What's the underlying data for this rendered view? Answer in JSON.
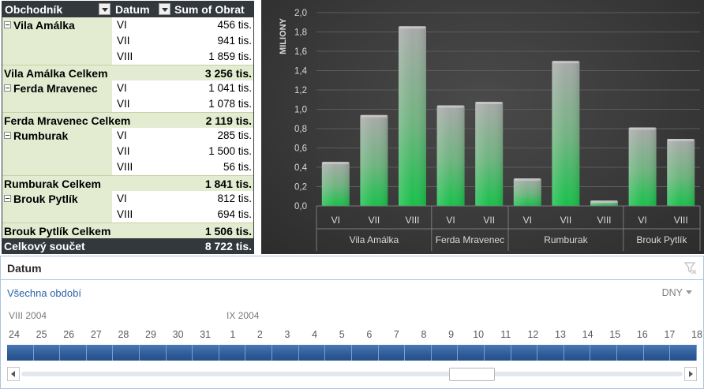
{
  "pivot": {
    "headers": {
      "merchant": "Obchodník",
      "date": "Datum",
      "sum": "Sum of Obrat"
    },
    "groups": [
      {
        "name": "Vila Amálka",
        "rows": [
          {
            "month": "VI",
            "value": "456 tis."
          },
          {
            "month": "VII",
            "value": "941 tis."
          },
          {
            "month": "VIII",
            "value": "1 859 tis."
          }
        ],
        "total_label": "Vila Amálka Celkem",
        "total_value": "3 256 tis."
      },
      {
        "name": "Ferda Mravenec",
        "rows": [
          {
            "month": "VI",
            "value": "1 041 tis."
          },
          {
            "month": "VII",
            "value": "1 078 tis."
          }
        ],
        "total_label": "Ferda Mravenec Celkem",
        "total_value": "2 119 tis."
      },
      {
        "name": "Rumburak",
        "rows": [
          {
            "month": "VI",
            "value": "285 tis."
          },
          {
            "month": "VII",
            "value": "1 500 tis."
          },
          {
            "month": "VIII",
            "value": "56 tis."
          }
        ],
        "total_label": "Rumburak Celkem",
        "total_value": "1 841 tis."
      },
      {
        "name": "Brouk Pytlík",
        "rows": [
          {
            "month": "VI",
            "value": "812 tis."
          },
          {
            "month": "VIII",
            "value": "694 tis."
          }
        ],
        "total_label": "Brouk Pytlík Celkem",
        "total_value": "1 506 tis."
      }
    ],
    "grand_total_label": "Celkový součet",
    "grand_total_value": "8 722 tis."
  },
  "chart_data": {
    "type": "bar",
    "ylabel": "MILIONY",
    "ylim": [
      0,
      2.0
    ],
    "yticks": [
      "0,0",
      "0,2",
      "0,4",
      "0,6",
      "0,8",
      "1,0",
      "1,2",
      "1,4",
      "1,6",
      "1,8",
      "2,0"
    ],
    "groups": [
      {
        "name": "Vila Amálka",
        "categories": [
          "VI",
          "VII",
          "VIII"
        ],
        "values": [
          0.456,
          0.941,
          1.859
        ]
      },
      {
        "name": "Ferda Mravenec",
        "categories": [
          "VI",
          "VII"
        ],
        "values": [
          1.041,
          1.078
        ]
      },
      {
        "name": "Rumburak",
        "categories": [
          "VI",
          "VII",
          "VIII"
        ],
        "values": [
          0.285,
          1.5,
          0.056
        ]
      },
      {
        "name": "Brouk Pytlík",
        "categories": [
          "VI",
          "VIII"
        ],
        "values": [
          0.812,
          0.694
        ]
      }
    ],
    "grid": true,
    "colors": {
      "bar_bottom": "#17c14a",
      "bar_top": "#a9a9a9",
      "text": "#d9d9d9",
      "grid": "#5c5c5c"
    }
  },
  "timeline": {
    "title": "Datum",
    "period_label": "Všechna období",
    "level_label": "DNY",
    "months": [
      "VIII 2004",
      "IX 2004"
    ],
    "days": [
      "24",
      "25",
      "26",
      "27",
      "28",
      "29",
      "30",
      "31",
      "1",
      "2",
      "3",
      "4",
      "5",
      "6",
      "7",
      "8",
      "9",
      "10",
      "11",
      "12",
      "13",
      "14",
      "15",
      "16",
      "17",
      "18"
    ],
    "icons": {
      "clear_filter": "clear-filter-icon",
      "scroll_left": "scroll-left-icon",
      "scroll_right": "scroll-right-icon"
    },
    "colors": {
      "selected_bar": "#2f5c99",
      "border": "#a9c4e0",
      "link": "#2c62a8"
    }
  }
}
